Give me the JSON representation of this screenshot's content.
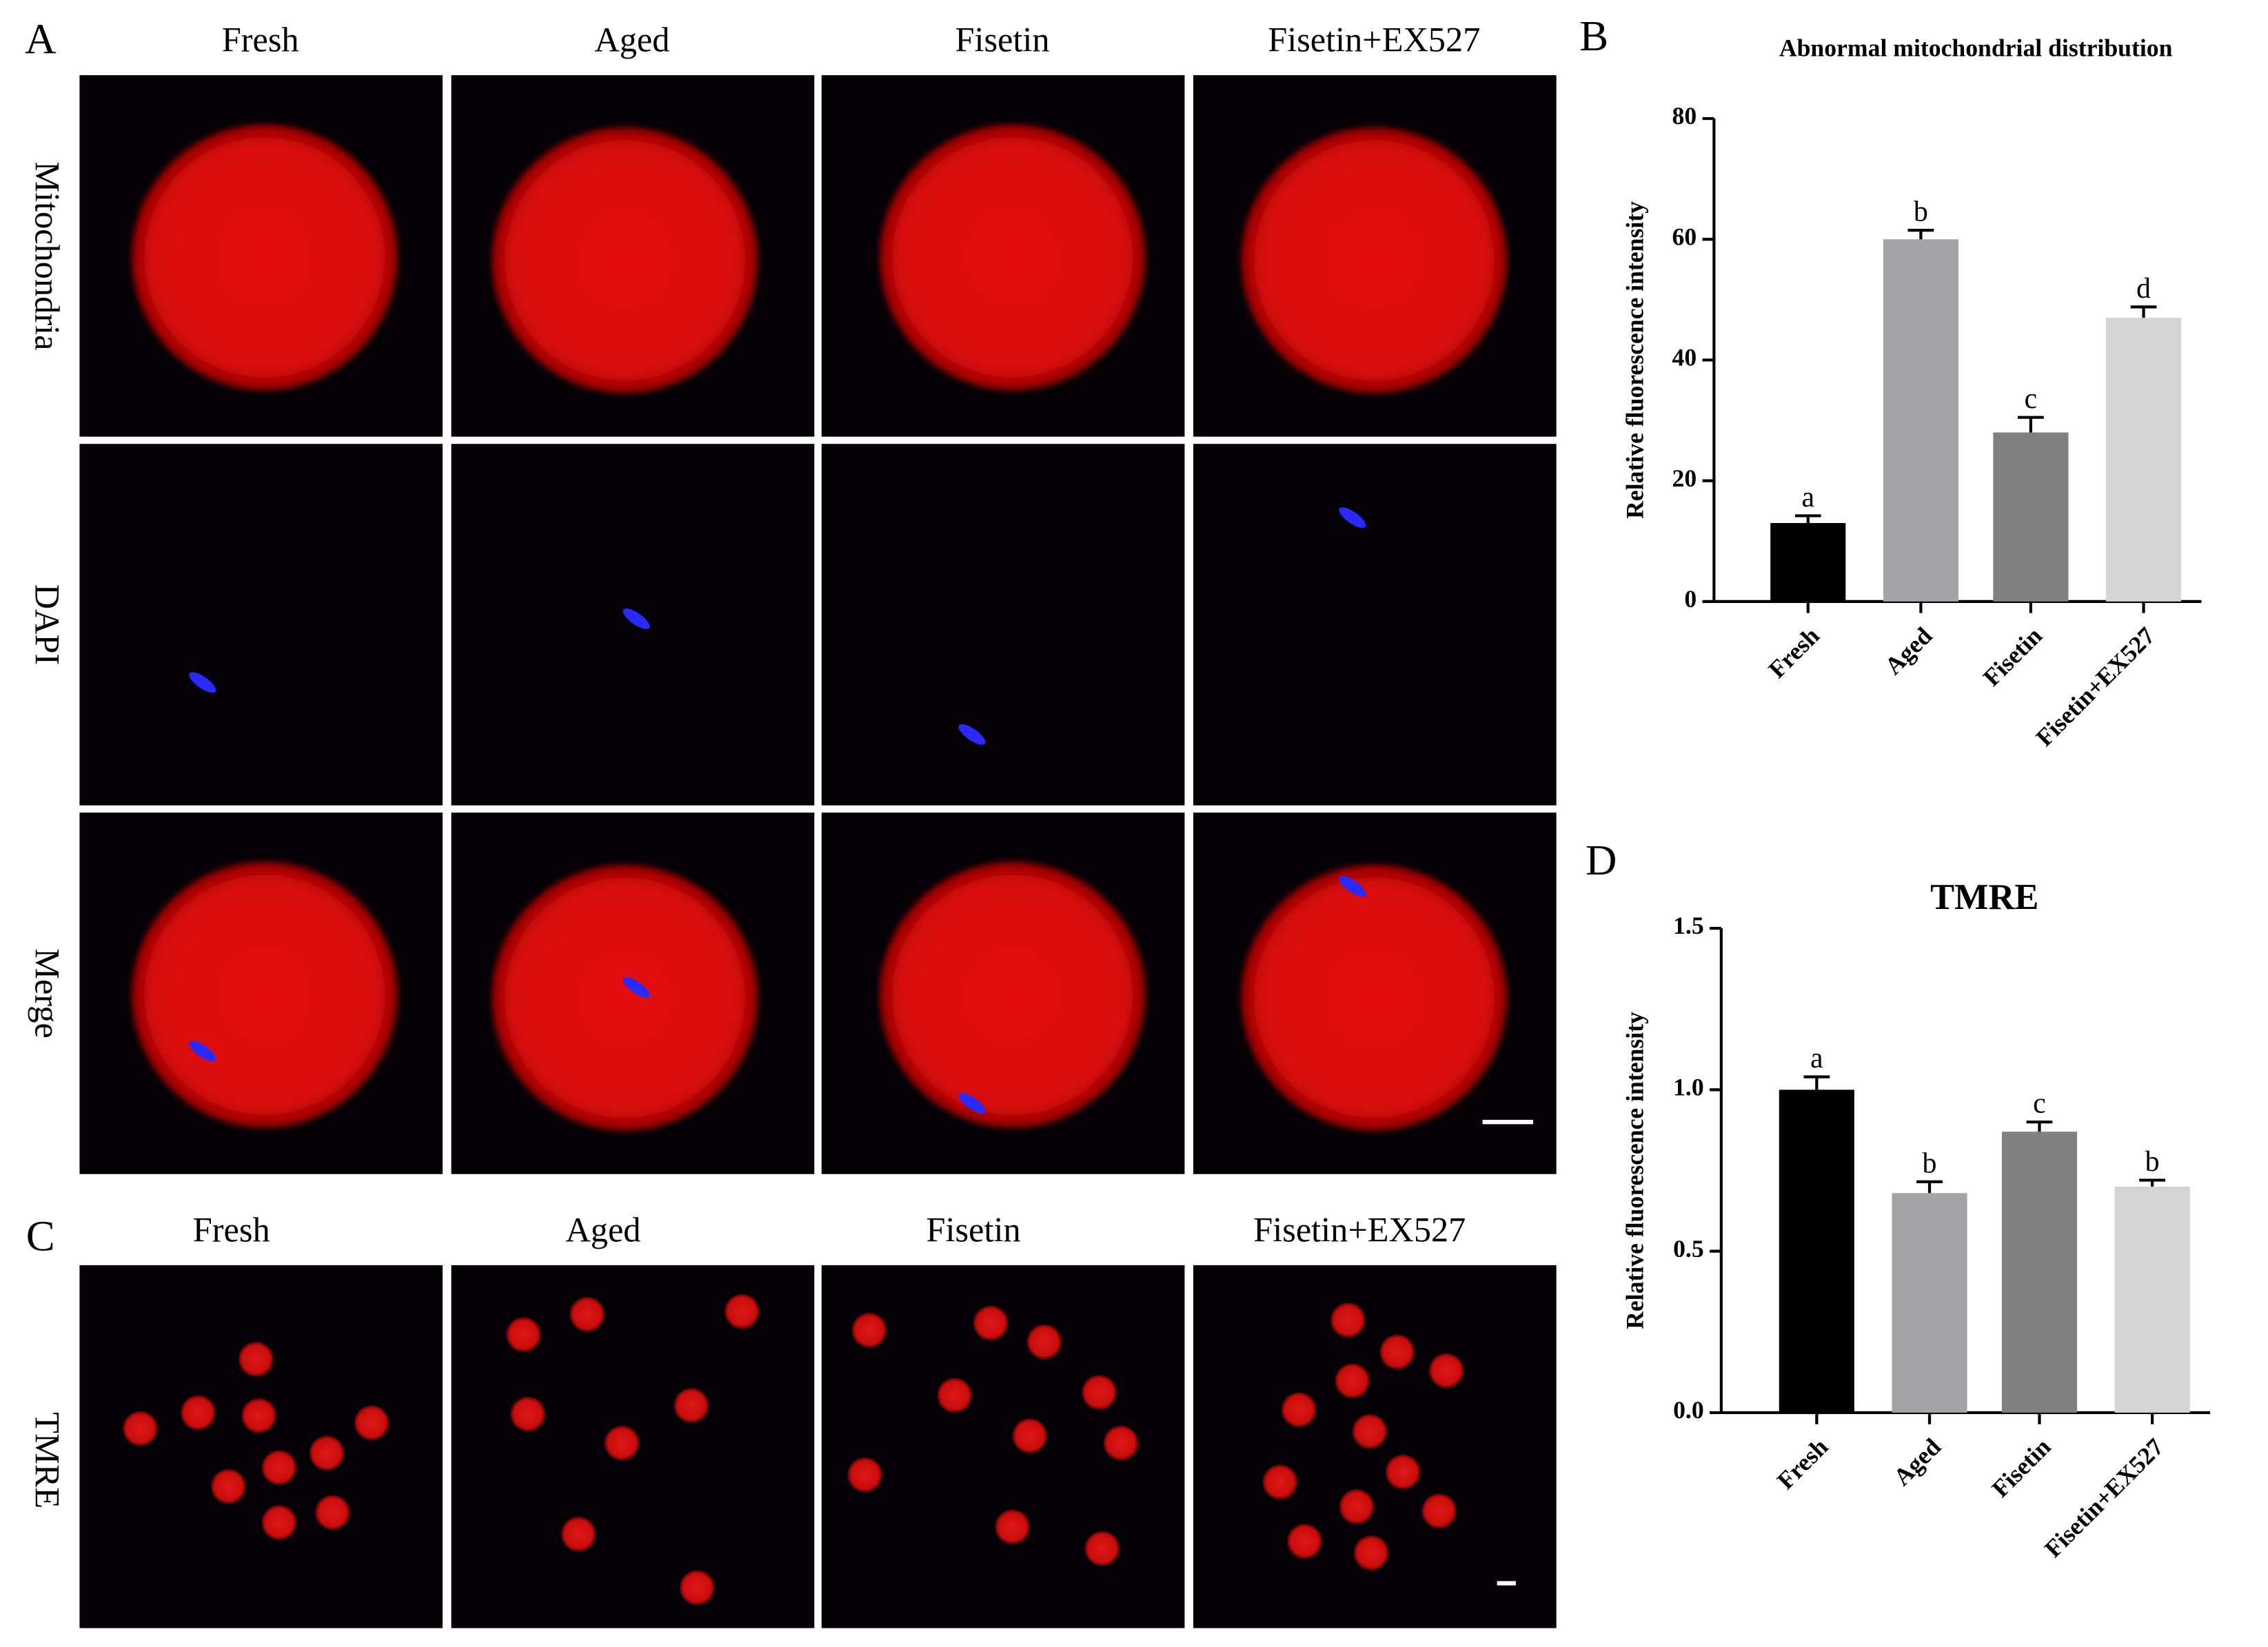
{
  "panel_labels": {
    "a": "A",
    "b": "B",
    "c": "C",
    "d": "D"
  },
  "panel_a": {
    "columns": [
      "Fresh",
      "Aged",
      "Fisetin",
      "Fisetin+EX527"
    ],
    "rows": [
      "Mitochondria",
      "DAPI",
      "Merge"
    ]
  },
  "panel_c": {
    "columns": [
      "Fresh",
      "Aged",
      "Fisetin",
      "Fisetin+EX527"
    ],
    "rows": [
      "TMRE"
    ]
  },
  "chart_data": [
    {
      "type": "bar",
      "title": "Abnormal mitochondrial distribution",
      "y_label": "Relative fluorescence intensity",
      "categories": [
        "Fresh",
        "Aged",
        "Fisetin",
        "Fisetin+EX527"
      ],
      "values": [
        13,
        60,
        28,
        47
      ],
      "errors": [
        1.2,
        1.5,
        2.5,
        1.8
      ],
      "significance": [
        "a",
        "b",
        "c",
        "d"
      ],
      "colors": [
        "#000000",
        "#a3a3a8",
        "#808080",
        "#d4d4d4"
      ],
      "ylim": [
        0,
        80
      ],
      "yticks": [
        0,
        20,
        40,
        60,
        80
      ]
    },
    {
      "type": "bar",
      "title": "TMRE",
      "y_label": "Relative fluorescence intensity",
      "categories": [
        "Fresh",
        "Aged",
        "Fisetin",
        "Fisetin+EX527"
      ],
      "values": [
        1.0,
        0.68,
        0.87,
        0.7
      ],
      "errors": [
        0.04,
        0.035,
        0.03,
        0.02
      ],
      "significance": [
        "a",
        "b",
        "c",
        "b"
      ],
      "colors": [
        "#000000",
        "#a3a3a8",
        "#808080",
        "#d4d4d4"
      ],
      "ylim": [
        0,
        1.5
      ],
      "yticks": [
        {
          "value": 0,
          "label": "0.0"
        },
        {
          "value": 0.5,
          "label": "0.5"
        },
        {
          "value": 1,
          "label": "1.0"
        },
        {
          "value": 1.5,
          "label": "1.5"
        }
      ]
    }
  ]
}
